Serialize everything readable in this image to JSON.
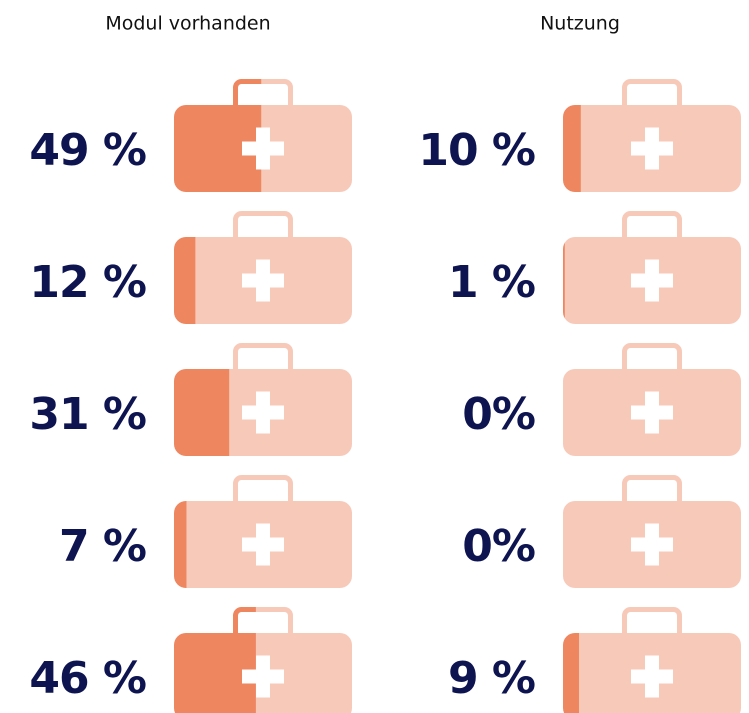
{
  "chart_data": {
    "type": "pictorial",
    "series": [
      {
        "name": "Modul vorhanden",
        "color": "#ee8660",
        "values": [
          49,
          12,
          31,
          7,
          46
        ],
        "value_labels": [
          "49 %",
          "12 %",
          "31 %",
          "7 %",
          "46 %"
        ]
      },
      {
        "name": "Nutzung",
        "color": "#ee8660",
        "values": [
          10,
          1,
          0,
          0,
          9
        ],
        "value_labels": [
          "10 %",
          "1 %",
          "0%",
          "0%",
          "9 %"
        ]
      }
    ],
    "track_color": "#f7c9b8",
    "xlim": [
      0,
      100
    ]
  }
}
